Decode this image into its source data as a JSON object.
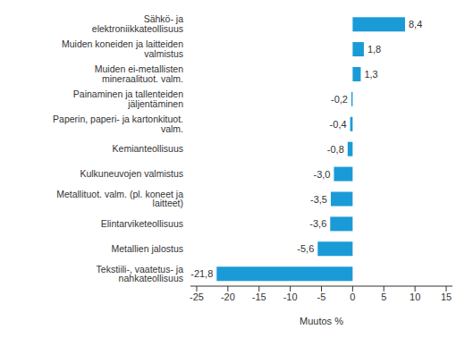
{
  "chart_data": {
    "type": "bar",
    "orientation": "horizontal",
    "x_label": "Muutos %",
    "categories": [
      "Sähkö- ja elektroniikkateollisuus",
      "Muiden koneiden ja laitteiden valmistus",
      "Muiden ei-metallisten mineraalituot. valm.",
      "Painaminen ja tallenteiden jäljentäminen",
      "Paperin, paperi- ja kartonkituot. valm.",
      "Kemianteollisuus",
      "Kulkuneuvojen valmistus",
      "Metallituot. valm. (pl. koneet ja laitteet)",
      "Elintarviketeollisuus",
      "Metallien jalostus",
      "Tekstiili-, vaatetus- ja nahkateollisuus"
    ],
    "values": [
      8.4,
      1.8,
      1.3,
      -0.2,
      -0.4,
      -0.8,
      -3.0,
      -3.5,
      -3.6,
      -5.6,
      -21.8
    ],
    "value_labels": [
      "8,4",
      "1,8",
      "1,3",
      "-0,2",
      "-0,4",
      "-0,8",
      "-3,0",
      "-3,5",
      "-3,6",
      "-5,6",
      "-21,8"
    ],
    "data_labels": true,
    "color": "#1a9bd7",
    "xlim": [
      -26,
      16
    ],
    "xticks": [
      -25,
      -20,
      -15,
      -10,
      -5,
      0,
      5,
      10,
      15
    ],
    "grid": false
  }
}
